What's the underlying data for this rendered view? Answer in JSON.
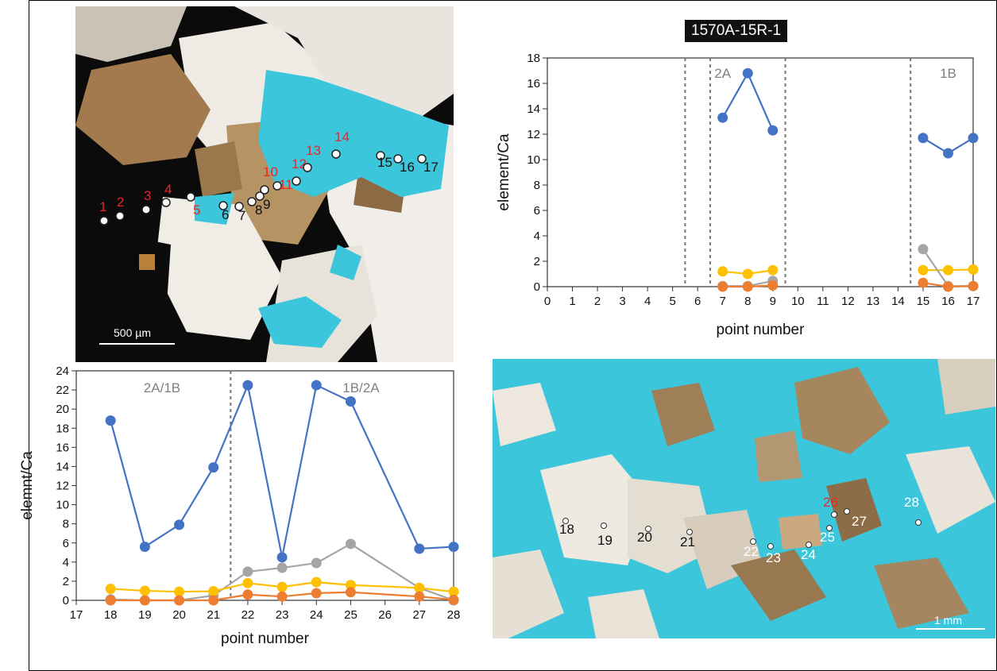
{
  "colors": {
    "blue": "#4472C4",
    "orange": "#ED7D31",
    "gray": "#A5A5A5",
    "yellow": "#FFC000",
    "epoxy": "#3CC6DB",
    "opaque": "#0b0b0b",
    "title_bg": "#111111"
  },
  "top_image": {
    "scale_label": "500 µm",
    "points": [
      {
        "label": "1",
        "color": "red"
      },
      {
        "label": "2",
        "color": "red"
      },
      {
        "label": "3",
        "color": "red"
      },
      {
        "label": "4",
        "color": "red"
      },
      {
        "label": "5",
        "color": "red"
      },
      {
        "label": "6",
        "color": "black"
      },
      {
        "label": "7",
        "color": "black"
      },
      {
        "label": "8",
        "color": "black"
      },
      {
        "label": "9",
        "color": "black"
      },
      {
        "label": "10",
        "color": "red"
      },
      {
        "label": "11",
        "color": "red"
      },
      {
        "label": "12",
        "color": "red"
      },
      {
        "label": "13",
        "color": "red"
      },
      {
        "label": "14",
        "color": "red"
      },
      {
        "label": "15",
        "color": "black"
      },
      {
        "label": "16",
        "color": "black"
      },
      {
        "label": "17",
        "color": "black"
      }
    ]
  },
  "bottom_image": {
    "scale_label": "1 mm",
    "points": [
      {
        "label": "18",
        "color": "black"
      },
      {
        "label": "19",
        "color": "black"
      },
      {
        "label": "20",
        "color": "black"
      },
      {
        "label": "21",
        "color": "black"
      },
      {
        "label": "22",
        "color": "white"
      },
      {
        "label": "23",
        "color": "white"
      },
      {
        "label": "24",
        "color": "white"
      },
      {
        "label": "25",
        "color": "white"
      },
      {
        "label": "26",
        "color": "red"
      },
      {
        "label": "27",
        "color": "white"
      },
      {
        "label": "28",
        "color": "white"
      }
    ]
  },
  "chart_data": [
    {
      "type": "line",
      "title": "1570A-15R-1",
      "xlabel": "point number",
      "ylabel": "element/Ca",
      "xlim": [
        0,
        17
      ],
      "ylim": [
        0,
        18
      ],
      "xticks": [
        0,
        1,
        2,
        3,
        4,
        5,
        6,
        7,
        8,
        9,
        10,
        11,
        12,
        13,
        14,
        15,
        16,
        17
      ],
      "yticks": [
        0,
        2,
        4,
        6,
        8,
        10,
        12,
        14,
        16,
        18
      ],
      "dividers": [
        5.5,
        6.5,
        9.5,
        14.5
      ],
      "annotations": [
        {
          "text": "2A",
          "x": 7
        },
        {
          "text": "1B",
          "x": 16
        }
      ],
      "series": [
        {
          "color": "blue",
          "segments": [
            [
              [
                7,
                13.3
              ],
              [
                8,
                16.8
              ],
              [
                9,
                12.3
              ]
            ],
            [
              [
                15,
                11.7
              ],
              [
                16,
                10.5
              ],
              [
                17,
                11.7
              ]
            ]
          ]
        },
        {
          "color": "yellow",
          "segments": [
            [
              [
                7,
                1.2
              ],
              [
                8,
                1.0
              ],
              [
                9,
                1.3
              ]
            ],
            [
              [
                15,
                1.3
              ],
              [
                16,
                1.3
              ],
              [
                17,
                1.35
              ]
            ]
          ]
        },
        {
          "color": "gray",
          "segments": [
            [
              [
                7,
                0.05
              ],
              [
                8,
                0.05
              ],
              [
                9,
                0.45
              ]
            ],
            [
              [
                15,
                2.95
              ],
              [
                16,
                0.05
              ],
              [
                17,
                0.05
              ]
            ]
          ]
        },
        {
          "color": "orange",
          "segments": [
            [
              [
                7,
                0.0
              ],
              [
                8,
                0.0
              ],
              [
                9,
                0.1
              ]
            ],
            [
              [
                15,
                0.3
              ],
              [
                16,
                0.0
              ],
              [
                17,
                0.05
              ]
            ]
          ]
        }
      ]
    },
    {
      "type": "line",
      "xlabel": "point number",
      "ylabel": "elemnt/Ca",
      "xlim": [
        17,
        28
      ],
      "ylim": [
        0,
        24
      ],
      "xticks": [
        17,
        18,
        19,
        20,
        21,
        22,
        23,
        24,
        25,
        26,
        27,
        28
      ],
      "yticks": [
        0,
        2,
        4,
        6,
        8,
        10,
        12,
        14,
        16,
        18,
        20,
        22,
        24
      ],
      "dividers": [
        21.5
      ],
      "annotations": [
        {
          "text": "2A/1B",
          "x": 19.5
        },
        {
          "text": "1B/2A",
          "x": 25.3
        }
      ],
      "series": [
        {
          "color": "blue",
          "segments": [
            [
              [
                18,
                18.8
              ],
              [
                19,
                5.6
              ],
              [
                20,
                7.9
              ],
              [
                21,
                13.9
              ],
              [
                22,
                22.5
              ],
              [
                23,
                4.5
              ],
              [
                24,
                22.5
              ],
              [
                25,
                20.8
              ],
              [
                27,
                5.4
              ],
              [
                28,
                5.6
              ]
            ]
          ]
        },
        {
          "color": "gray",
          "segments": [
            [
              [
                18,
                0.1
              ],
              [
                19,
                0.0
              ],
              [
                20,
                0.0
              ],
              [
                21,
                0.5
              ],
              [
                22,
                3.0
              ],
              [
                23,
                3.4
              ],
              [
                24,
                3.9
              ],
              [
                25,
                5.9
              ],
              [
                27,
                1.3
              ],
              [
                28,
                0.0
              ]
            ]
          ]
        },
        {
          "color": "yellow",
          "segments": [
            [
              [
                18,
                1.2
              ],
              [
                19,
                1.0
              ],
              [
                20,
                0.9
              ],
              [
                21,
                0.95
              ],
              [
                22,
                1.8
              ],
              [
                23,
                1.4
              ],
              [
                24,
                1.9
              ],
              [
                25,
                1.6
              ],
              [
                27,
                1.3
              ],
              [
                28,
                0.9
              ]
            ]
          ]
        },
        {
          "color": "orange",
          "segments": [
            [
              [
                18,
                0.0
              ],
              [
                19,
                0.0
              ],
              [
                20,
                0.0
              ],
              [
                21,
                0.0
              ],
              [
                22,
                0.6
              ],
              [
                23,
                0.4
              ],
              [
                24,
                0.75
              ],
              [
                25,
                0.85
              ],
              [
                27,
                0.4
              ],
              [
                28,
                0.05
              ]
            ]
          ]
        }
      ]
    }
  ]
}
